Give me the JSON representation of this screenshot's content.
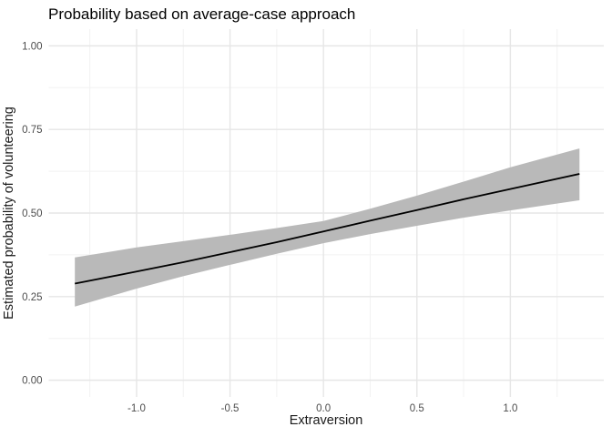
{
  "title": "Probability based on average-case approach",
  "chart_data": {
    "type": "line",
    "title": "Probability based on average-case approach",
    "xlabel": "Extraversion",
    "ylabel": "Estimated probability of volunteering",
    "xlim": [
      -1.47,
      1.5
    ],
    "ylim": [
      -0.05,
      1.05
    ],
    "x_ticks": [
      -1.0,
      -0.5,
      0.0,
      0.5,
      1.0
    ],
    "x_tick_labels": [
      "-1.0",
      "-0.5",
      "0.0",
      "0.5",
      "1.0"
    ],
    "x_minor_ticks": [
      -1.25,
      -0.75,
      -0.25,
      0.25,
      0.75,
      1.25
    ],
    "y_ticks": [
      0.0,
      0.25,
      0.5,
      0.75,
      1.0
    ],
    "y_tick_labels": [
      "0.00",
      "0.25",
      "0.50",
      "0.75",
      "1.00"
    ],
    "y_minor_ticks": [
      0.125,
      0.375,
      0.625,
      0.875
    ],
    "grid": true,
    "legend": false,
    "x": [
      -1.33,
      -1.0,
      -0.75,
      -0.5,
      -0.25,
      0.0,
      0.25,
      0.5,
      0.75,
      1.0,
      1.37
    ],
    "series": [
      {
        "name": "fit",
        "values": [
          0.289,
          0.325,
          0.353,
          0.383,
          0.413,
          0.445,
          0.477,
          0.509,
          0.541,
          0.572,
          0.617
        ]
      },
      {
        "name": "ci_lower",
        "values": [
          0.22,
          0.274,
          0.311,
          0.345,
          0.378,
          0.41,
          0.437,
          0.462,
          0.486,
          0.508,
          0.538
        ]
      },
      {
        "name": "ci_upper",
        "values": [
          0.367,
          0.397,
          0.416,
          0.435,
          0.455,
          0.476,
          0.513,
          0.552,
          0.594,
          0.637,
          0.693
        ]
      }
    ],
    "colors": {
      "background": "#ffffff",
      "line": "#000000",
      "ribbon": "#b9b9b9",
      "grid_major": "#e6e6e6",
      "grid_minor": "#f2f2f2",
      "tick_label": "#4d4d4d",
      "axis_title": "#1a1a1a",
      "title": "#000000"
    }
  }
}
